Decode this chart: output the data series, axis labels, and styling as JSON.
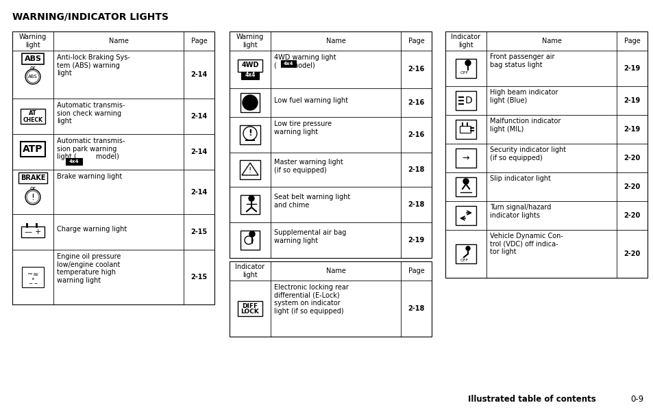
{
  "title": "WARNING/INDICATOR LIGHTS",
  "footer_text": "Illustrated table of contents",
  "footer_page": "0-9",
  "bg_color": "#ffffff",
  "text_color": "#000000"
}
